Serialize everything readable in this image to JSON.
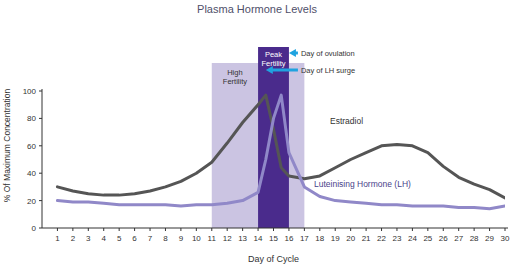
{
  "chart_data": {
    "type": "line",
    "title": "Plasma Hormone Levels",
    "x_label": "Day of Cycle",
    "y_label": "% Of Maximum Concentration",
    "x": [
      1,
      2,
      3,
      4,
      5,
      6,
      7,
      8,
      9,
      10,
      11,
      12,
      13,
      14,
      14.5,
      15,
      15.5,
      16,
      17,
      18,
      19,
      20,
      21,
      22,
      23,
      24,
      25,
      26,
      27,
      28,
      29,
      30
    ],
    "series": [
      {
        "name": "Estradiol",
        "color": "#555555",
        "values": [
          30,
          27,
          25,
          24,
          24,
          25,
          27,
          30,
          34,
          40,
          48,
          62,
          77,
          90,
          97,
          72,
          44,
          38,
          36,
          38,
          44,
          50,
          55,
          60,
          61,
          60,
          55,
          45,
          37,
          32,
          28,
          22
        ]
      },
      {
        "name": "Luteinising Hormone (LH)",
        "color": "#9088c8",
        "values": [
          20,
          19,
          19,
          18,
          17,
          17,
          17,
          17,
          16,
          17,
          17,
          18,
          20,
          26,
          50,
          80,
          97,
          55,
          30,
          23,
          20,
          19,
          18,
          17,
          17,
          16,
          16,
          16,
          15,
          15,
          14,
          16
        ]
      }
    ],
    "xlim": [
      0,
      30
    ],
    "ylim": [
      0,
      100
    ],
    "xticks": [
      1,
      2,
      3,
      4,
      5,
      6,
      7,
      8,
      9,
      10,
      11,
      12,
      13,
      14,
      15,
      16,
      17,
      18,
      19,
      20,
      21,
      22,
      23,
      24,
      25,
      26,
      27,
      28,
      29,
      30
    ],
    "yticks": [
      0,
      20,
      40,
      60,
      80,
      100
    ],
    "grid": false,
    "regions": [
      {
        "label": "High Fertility",
        "start": 11,
        "end": 17,
        "color": "#cbc4e2"
      },
      {
        "label": "Peak Fertility",
        "start": 14,
        "end": 16,
        "color": "#4a2b8c"
      }
    ],
    "annotations": [
      {
        "text": "Day of ovulation",
        "x": 16
      },
      {
        "text": "Day of LH surge",
        "x": 14.5
      }
    ]
  }
}
